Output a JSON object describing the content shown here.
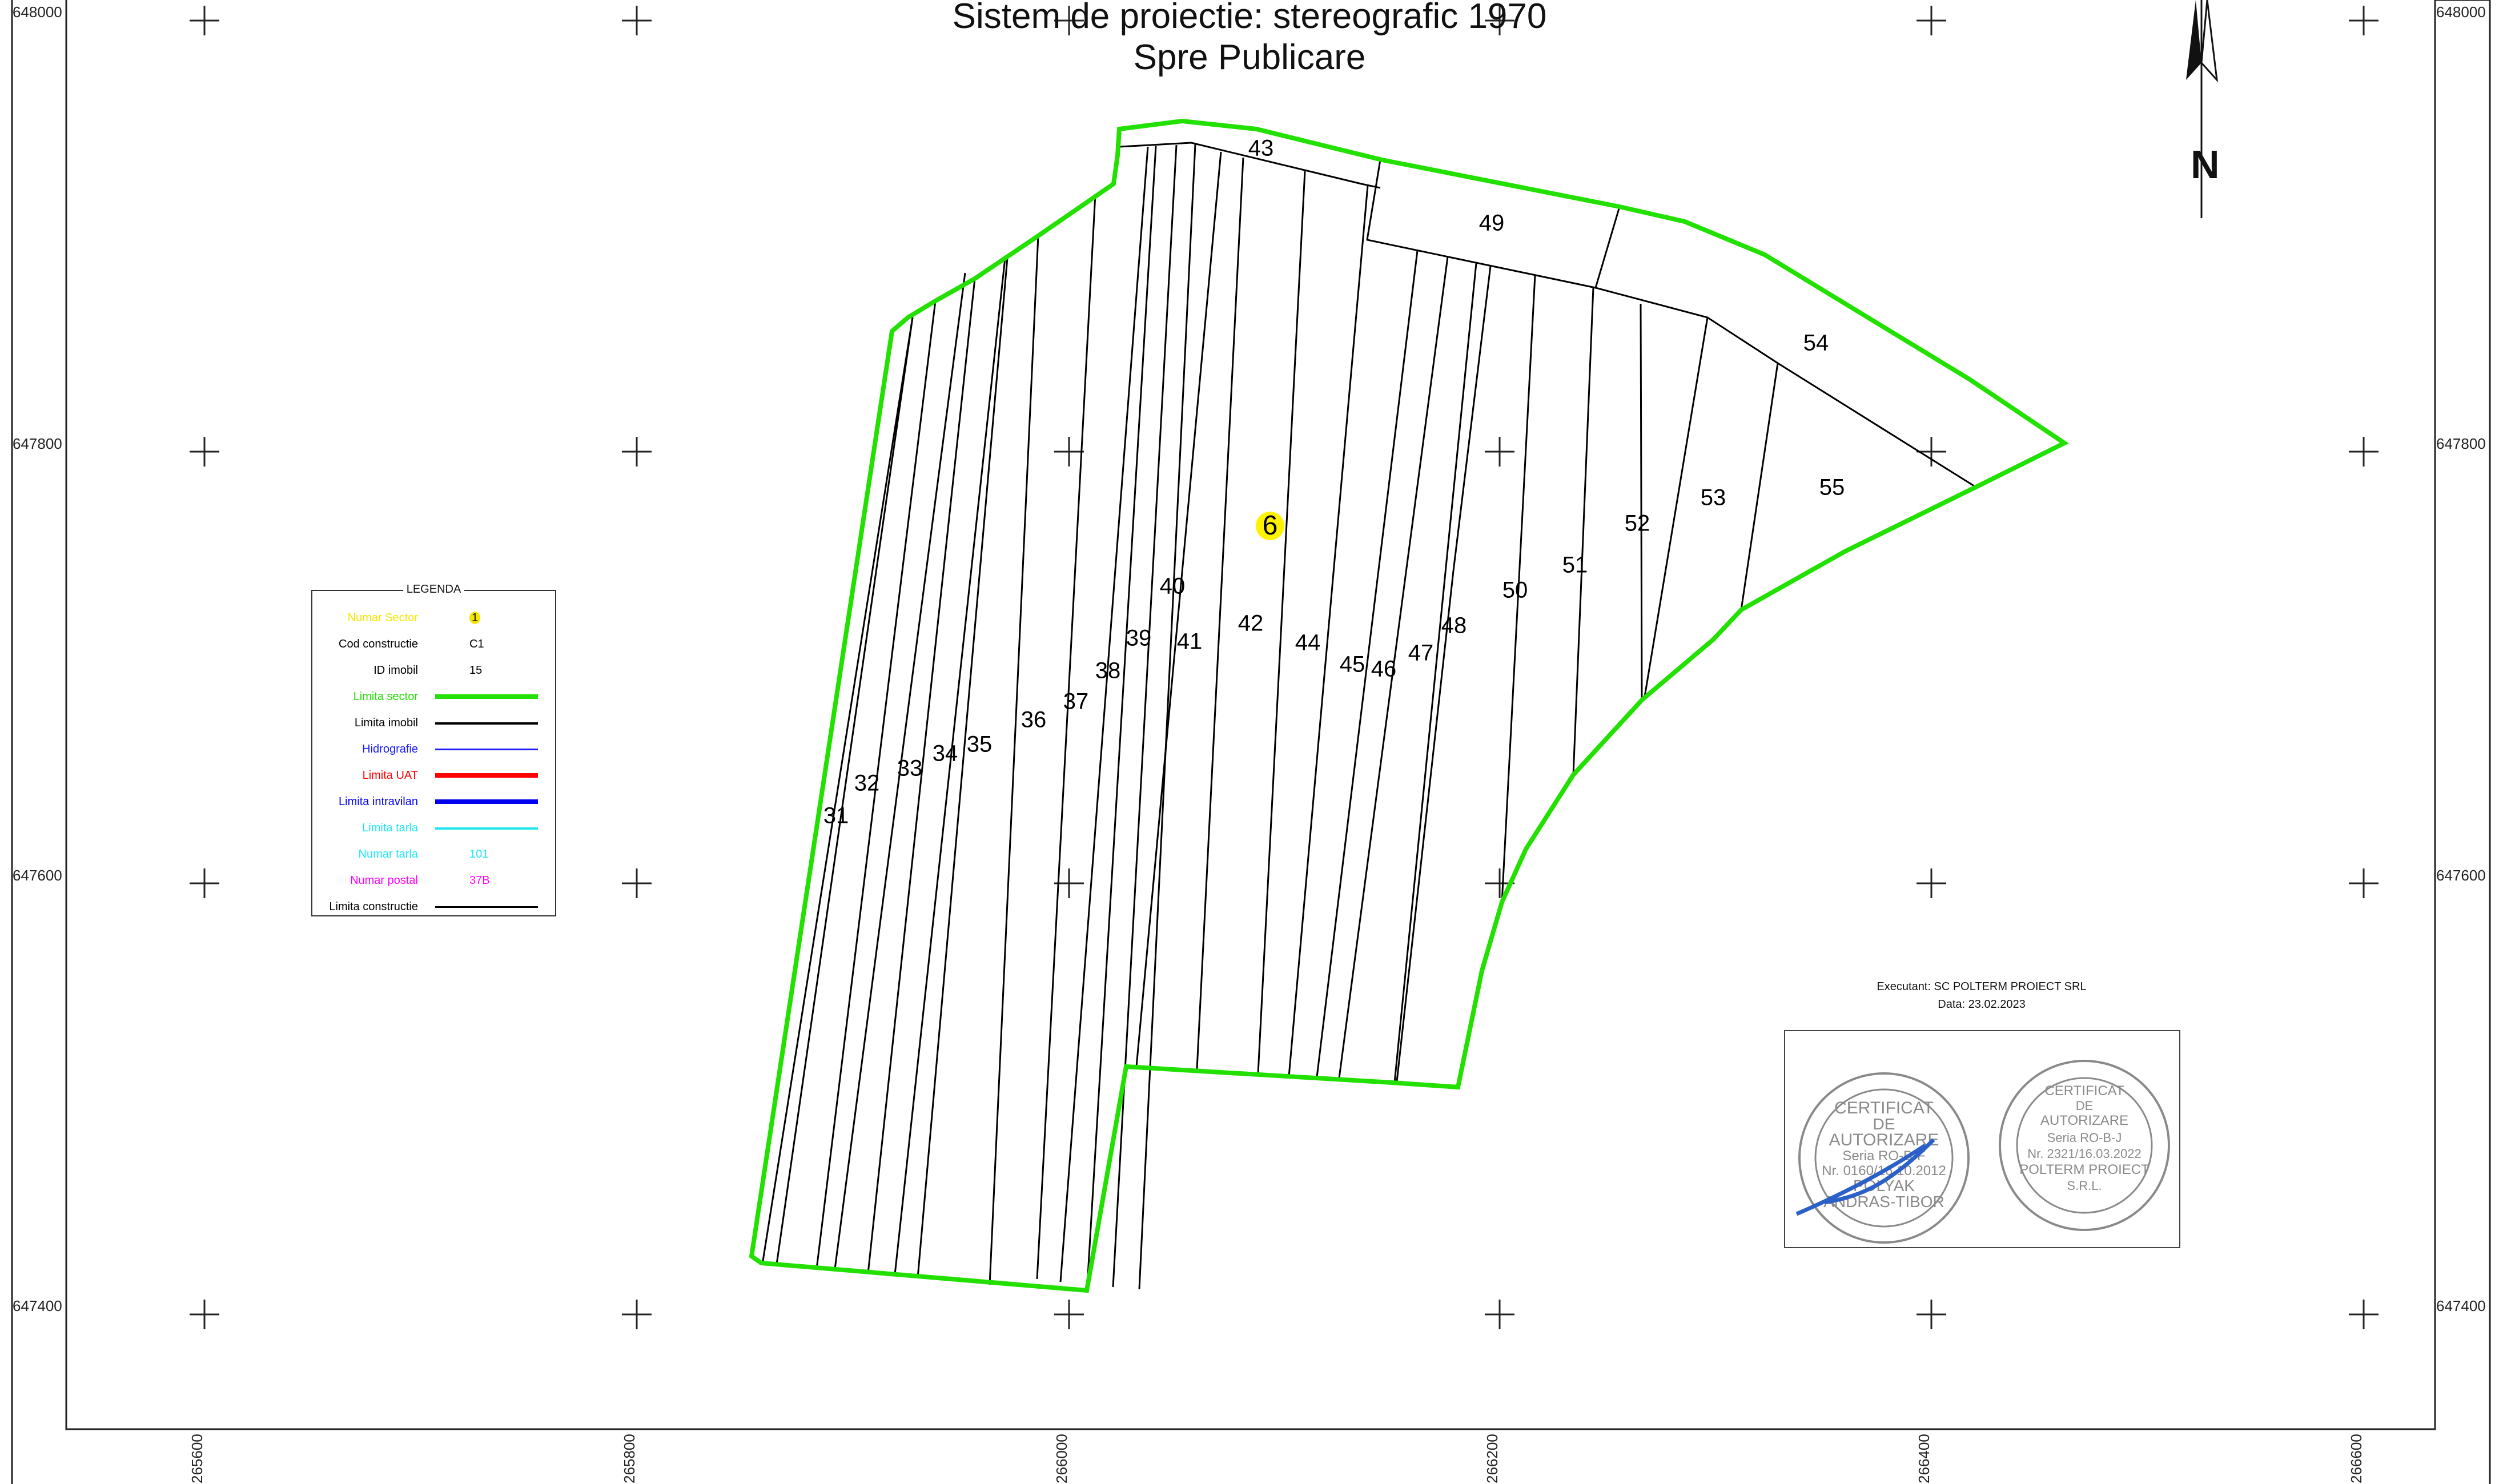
{
  "title": {
    "line1": "Sistem de proiectie: stereografic 1970",
    "line2": "Spre Publicare"
  },
  "north_arrow": {
    "label": "N"
  },
  "grid": {
    "y_labels": [
      "648000",
      "647800",
      "647600",
      "647400"
    ],
    "x_labels": [
      "265600",
      "265800",
      "266000",
      "266200",
      "266400",
      "266600"
    ]
  },
  "sector": {
    "label": "6"
  },
  "parcels": [
    "31",
    "32",
    "33",
    "34",
    "35",
    "36",
    "37",
    "38",
    "39",
    "40",
    "41",
    "42",
    "43",
    "44",
    "45",
    "46",
    "47",
    "48",
    "49",
    "50",
    "51",
    "52",
    "53",
    "54",
    "55"
  ],
  "legend": {
    "title": "LEGENDA",
    "rows": [
      {
        "label": "Numar Sector",
        "sample": "1",
        "color": "#f5e600",
        "kind": "badge"
      },
      {
        "label": "Cod constructie",
        "sample": "C1",
        "color": "#000000",
        "kind": "text"
      },
      {
        "label": "ID imobil",
        "sample": "15",
        "color": "#000000",
        "kind": "text"
      },
      {
        "label": "Limita sector",
        "color": "#22e000",
        "kind": "line"
      },
      {
        "label": "Limita imobil",
        "color": "#000000",
        "kind": "line"
      },
      {
        "label": "Hidrografie",
        "color": "#1a1aff",
        "kind": "line"
      },
      {
        "label": "Limita UAT",
        "color": "#ff0000",
        "kind": "line"
      },
      {
        "label": "Limita intravilan",
        "color": "#0000ee",
        "kind": "line"
      },
      {
        "label": "Limita tarla",
        "color": "#22e5f0",
        "kind": "line"
      },
      {
        "label": "Numar tarla",
        "sample": "101",
        "color": "#22e5f0",
        "kind": "text"
      },
      {
        "label": "Numar postal",
        "sample": "37B",
        "color": "#ff00ff",
        "kind": "text"
      },
      {
        "label": "Limita constructie",
        "color": "#000000",
        "kind": "line"
      }
    ]
  },
  "executor": {
    "line1": "Executant: SC POLTERM PROIECT SRL",
    "line2": "Data: 23.02.2023"
  },
  "stamps": {
    "left": {
      "line1": "CERTIFICAT",
      "line2": "DE",
      "line3": "AUTORIZARE",
      "line4": "Seria RO-B-F",
      "line5": "Nr. 0160/16.10.2012",
      "line6": "POLYAK",
      "line7": "ANDRAS-TIBOR"
    },
    "right": {
      "line1": "CERTIFICAT",
      "line2": "DE",
      "line3": "AUTORIZARE",
      "line4": "Seria RO-B-J",
      "line5": "Nr. 2321/16.03.2022",
      "line6": "POLTERM PROIECT",
      "line7": "S.R.L."
    }
  }
}
